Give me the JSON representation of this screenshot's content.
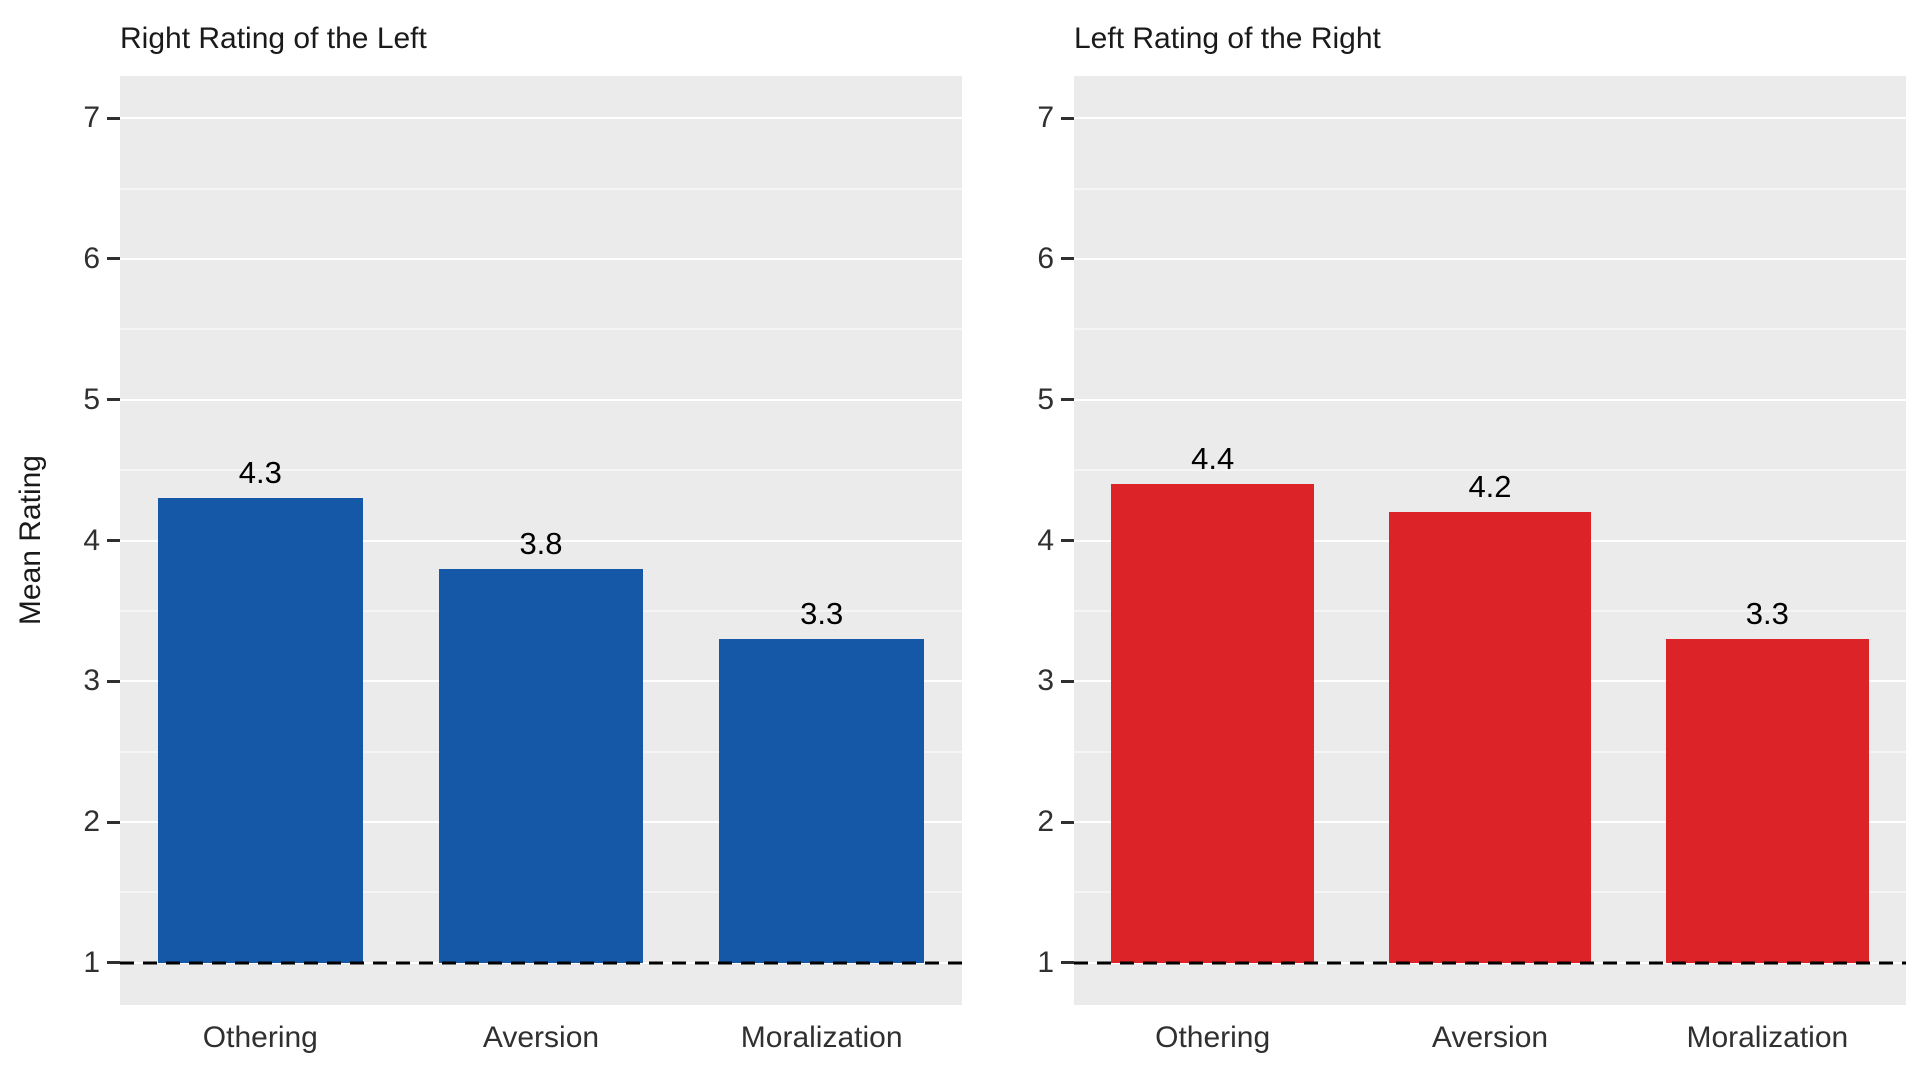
{
  "figure": {
    "background": "#ffffff"
  },
  "chart_data": [
    {
      "type": "bar",
      "title": "Right Rating of the Left",
      "ylabel": "Mean Rating",
      "xlabel": "",
      "categories": [
        "Othering",
        "Aversion",
        "Moralization"
      ],
      "values": [
        4.3,
        3.8,
        3.3
      ],
      "bar_labels": [
        "4.3",
        "3.8",
        "3.3"
      ],
      "bar_color": "#1658A8",
      "yticks": [
        1,
        2,
        3,
        4,
        5,
        6,
        7
      ],
      "ytick_labels": [
        "1",
        "2",
        "3",
        "4",
        "5",
        "6",
        "7"
      ],
      "ylim": [
        1,
        7
      ],
      "y_range": [
        0.7,
        7.3
      ],
      "baseline": 1,
      "baseline_style": "dashed-black",
      "grid": "major+minor-white",
      "plot_background": "#EBEBEB",
      "gridline_color": "#FFFFFF",
      "legend": "none"
    },
    {
      "type": "bar",
      "title": "Left Rating of the Right",
      "ylabel": "",
      "xlabel": "",
      "categories": [
        "Othering",
        "Aversion",
        "Moralization"
      ],
      "values": [
        4.4,
        4.2,
        3.3
      ],
      "bar_labels": [
        "4.4",
        "4.2",
        "3.3"
      ],
      "bar_color": "#DC2328",
      "yticks": [
        1,
        2,
        3,
        4,
        5,
        6,
        7
      ],
      "ytick_labels": [
        "1",
        "2",
        "3",
        "4",
        "5",
        "6",
        "7"
      ],
      "ylim": [
        1,
        7
      ],
      "y_range": [
        0.7,
        7.3
      ],
      "baseline": 1,
      "baseline_style": "dashed-black",
      "grid": "major+minor-white",
      "plot_background": "#EBEBEB",
      "gridline_color": "#FFFFFF",
      "legend": "none"
    }
  ]
}
